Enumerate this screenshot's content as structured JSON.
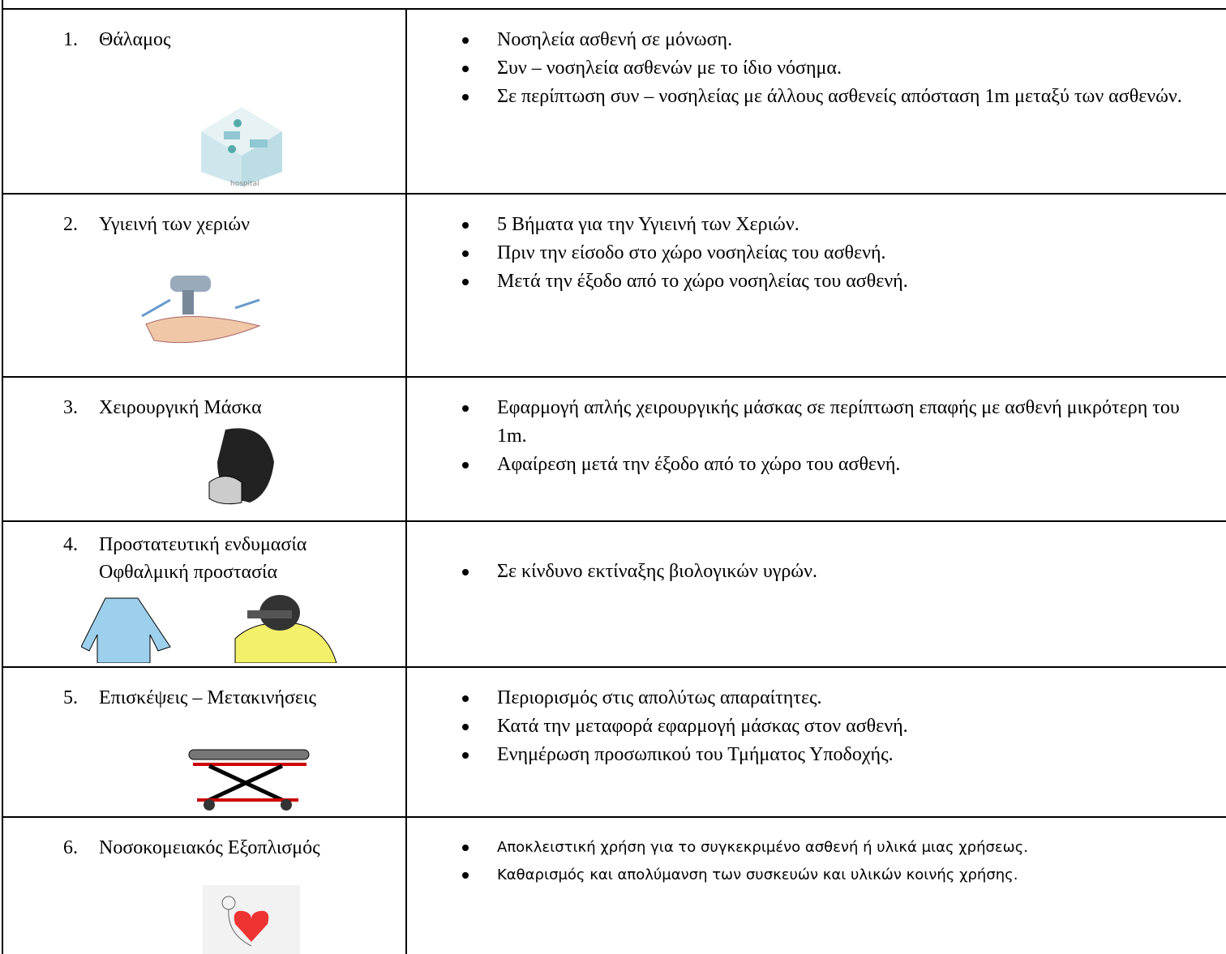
{
  "table": {
    "rows": [
      {
        "number": "1.",
        "label": [
          "Θάλαμος"
        ],
        "image_label": "hospital",
        "items": [
          "Νοσηλεία ασθενή σε μόνωση.",
          "Συν – νοσηλεία ασθενών με το ίδιο νόσημα.",
          "Σε περίπτωση συν – νοσηλείας με άλλους ασθενείς απόσταση 1m μεταξύ των ασθενών."
        ]
      },
      {
        "number": "2.",
        "label": [
          "Υγιεινή των χεριών"
        ],
        "items": [
          "5 Βήματα για την Υγιεινή των Χεριών.",
          "Πριν την είσοδο στο χώρο νοσηλείας του ασθενή.",
          "Μετά την έξοδο από το χώρο νοσηλείας του ασθενή."
        ]
      },
      {
        "number": "3.",
        "label": [
          "Χειρουργική Μάσκα"
        ],
        "items": [
          "Εφαρμογή απλής χειρουργικής μάσκας σε περίπτωση επαφής με ασθενή μικρότερη του  1m.",
          "Αφαίρεση μετά την έξοδο από το χώρο του ασθενή."
        ]
      },
      {
        "number": "4.",
        "label": [
          "Προστατευτική ενδυμασία",
          "Οφθαλμική προστασία"
        ],
        "items": [
          "Σε κίνδυνο εκτίναξης βιολογικών υγρών."
        ]
      },
      {
        "number": "5.",
        "label": [
          "Επισκέψεις – Μετακινήσεις"
        ],
        "items": [
          "Περιορισμός στις απολύτως απαραίτητες.",
          "Κατά την μεταφορά εφαρμογή μάσκας στον ασθενή.",
          "Ενημέρωση προσωπικού του Τμήματος Υποδοχής."
        ]
      },
      {
        "number": "6.",
        "label": [
          "Νοσοκομειακός Εξοπλισμός"
        ],
        "items": [
          "Αποκλειστική χρήση για το συγκεκριμένο ασθενή ή υλικά μιας χρήσεως.",
          "Καθαρισμός και απολύμανση των συσκευών και υλικών κοινής χρήσης."
        ]
      }
    ]
  }
}
